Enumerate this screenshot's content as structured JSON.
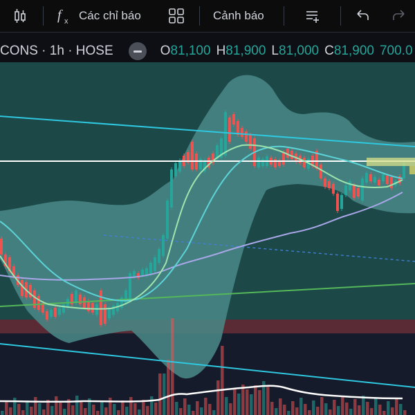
{
  "toolbar": {
    "indicators_label": "Các chỉ báo",
    "alerts_label": "Cảnh báo"
  },
  "legend": {
    "symbol": "CONS · 1h · HOSE",
    "o_label": "O",
    "o_value": "81,100",
    "h_label": "H",
    "h_value": "81,900",
    "l_label": "L",
    "l_value": "81,000",
    "c_label": "C",
    "c_value": "81,900",
    "vol_value": "700.0"
  },
  "colors": {
    "up": "#26a69a",
    "down": "#ef5350",
    "cloud": "#4a8a88",
    "price_bg": "#1c4848",
    "volume_bg": "#151b2a",
    "band_red": "#5a2a35",
    "trend_cyan": "#2ec8e0",
    "ma_fast": "#9ee6b0",
    "ma_mid": "#5cd4d8",
    "ma_slow": "#a9a7e8",
    "support_green": "#55b85a",
    "level_white": "#ffffff",
    "resist_yellow": "#d8e08a"
  }
}
